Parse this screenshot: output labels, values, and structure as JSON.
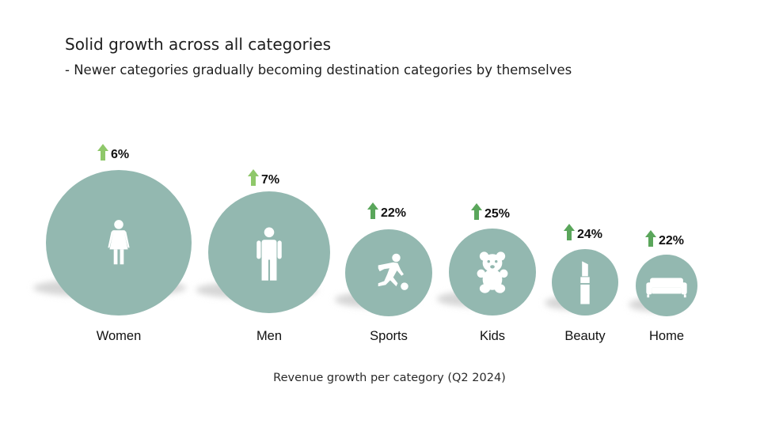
{
  "header": {
    "title": "Solid growth across all categories",
    "subtitle": "- Newer categories gradually becoming destination categories by themselves"
  },
  "colors": {
    "bubble": "#93b8b0",
    "shadow": "#d6d6d6",
    "arrow_light": "#8fc86a",
    "arrow_dark": "#5aa65b",
    "icon": "#ffffff"
  },
  "chart_data": {
    "type": "bubble",
    "title": "Solid growth across all categories",
    "xlabel": "Revenue growth per category (Q2 2024)",
    "categories": [
      "Women",
      "Men",
      "Sports",
      "Kids",
      "Beauty",
      "Home"
    ],
    "series": [
      {
        "values": [
          6,
          7,
          22,
          25,
          24,
          22
        ],
        "value_labels": [
          "6%",
          "7%",
          "22%",
          "25%",
          "24%",
          "22%"
        ]
      }
    ],
    "icons": [
      "woman-icon",
      "man-icon",
      "sports-icon",
      "teddy-bear-icon",
      "lipstick-icon",
      "sofa-icon"
    ],
    "arrow_shades": [
      "light",
      "light",
      "dark",
      "dark",
      "dark",
      "dark"
    ],
    "legend": "none",
    "grid": false
  }
}
